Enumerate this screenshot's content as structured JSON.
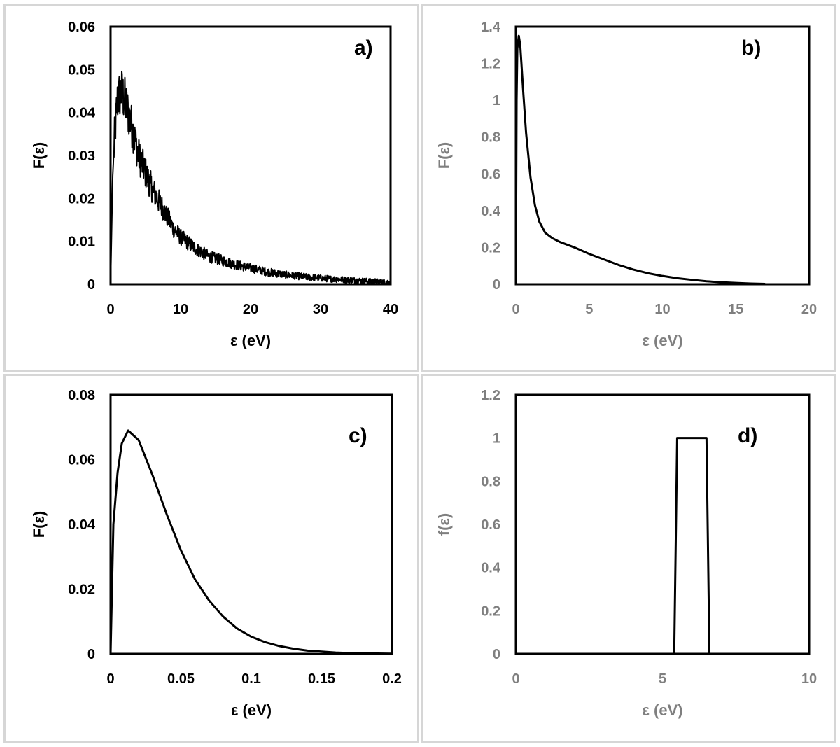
{
  "chart_data": [
    {
      "type": "line",
      "panel_label": "a)",
      "xlabel": "ε (eV)",
      "ylabel": "F(ε)",
      "xlim": [
        0,
        40
      ],
      "ylim": [
        0,
        0.06
      ],
      "xticks": [
        "0",
        "10",
        "20",
        "30",
        "40"
      ],
      "yticks": [
        "0",
        "0.01",
        "0.02",
        "0.03",
        "0.04",
        "0.05",
        "0.06"
      ],
      "grid": false,
      "noisy": true,
      "series": [
        {
          "x": [
            0,
            0.3,
            0.6,
            1,
            1.5,
            2,
            3,
            4,
            5,
            6,
            7,
            8,
            9,
            10,
            12,
            14,
            16,
            18,
            20,
            22,
            25,
            28,
            31,
            34,
            37,
            40
          ],
          "y": [
            0,
            0.025,
            0.035,
            0.043,
            0.045,
            0.043,
            0.037,
            0.03,
            0.026,
            0.022,
            0.019,
            0.016,
            0.013,
            0.011,
            0.0085,
            0.0065,
            0.0055,
            0.0045,
            0.0038,
            0.003,
            0.0022,
            0.0017,
            0.0013,
            0.001,
            0.0007,
            0.0005
          ]
        }
      ]
    },
    {
      "type": "line",
      "panel_label": "b)",
      "xlabel": "ε (eV)",
      "ylabel": "F(ε)",
      "xlim": [
        0,
        20
      ],
      "ylim": [
        0,
        1.4
      ],
      "xticks": [
        "0",
        "5",
        "10",
        "15",
        "20"
      ],
      "yticks": [
        "0",
        "0.2",
        "0.4",
        "0.6",
        "0.8",
        "1",
        "1.2",
        "1.4"
      ],
      "grid": false,
      "series": [
        {
          "x": [
            0,
            0.05,
            0.1,
            0.2,
            0.3,
            0.5,
            0.7,
            1.0,
            1.3,
            1.6,
            2.0,
            2.5,
            3,
            4,
            5,
            6,
            7,
            8,
            9,
            10,
            11,
            12,
            13,
            14,
            15,
            16,
            17
          ],
          "y": [
            0,
            1.0,
            1.28,
            1.35,
            1.3,
            1.05,
            0.82,
            0.58,
            0.43,
            0.34,
            0.28,
            0.25,
            0.23,
            0.2,
            0.165,
            0.135,
            0.105,
            0.08,
            0.06,
            0.045,
            0.033,
            0.024,
            0.016,
            0.011,
            0.007,
            0.004,
            0.002
          ]
        }
      ]
    },
    {
      "type": "line",
      "panel_label": "c)",
      "xlabel": "ε (eV)",
      "ylabel": "F(ε)",
      "xlim": [
        0,
        0.2
      ],
      "ylim": [
        0,
        0.08
      ],
      "xticks": [
        "0",
        "0.05",
        "0.1",
        "0.15",
        "0.2"
      ],
      "yticks": [
        "0",
        "0.02",
        "0.04",
        "0.06",
        "0.08"
      ],
      "grid": false,
      "series": [
        {
          "x": [
            0,
            0.002,
            0.005,
            0.008,
            0.0125,
            0.02,
            0.03,
            0.04,
            0.05,
            0.06,
            0.07,
            0.08,
            0.09,
            0.1,
            0.11,
            0.12,
            0.13,
            0.14,
            0.15,
            0.16,
            0.17,
            0.18,
            0.19,
            0.2
          ],
          "y": [
            0,
            0.04,
            0.056,
            0.065,
            0.069,
            0.066,
            0.055,
            0.043,
            0.032,
            0.023,
            0.0165,
            0.0115,
            0.0078,
            0.0053,
            0.0036,
            0.0024,
            0.0016,
            0.001,
            0.0007,
            0.0004,
            0.00025,
            0.00015,
            0.0001,
            5e-05
          ]
        }
      ]
    },
    {
      "type": "line",
      "panel_label": "d)",
      "xlabel": "ε (eV)",
      "ylabel": "f(ε)",
      "xlim": [
        0,
        10
      ],
      "ylim": [
        0,
        1.2
      ],
      "xticks": [
        "0",
        "5",
        "10"
      ],
      "yticks": [
        "0",
        "0.2",
        "0.4",
        "0.6",
        "0.8",
        "1",
        "1.2"
      ],
      "grid": false,
      "series": [
        {
          "x": [
            5.4,
            5.5,
            6.5,
            6.6
          ],
          "y": [
            0,
            1,
            1,
            0
          ]
        }
      ]
    }
  ]
}
